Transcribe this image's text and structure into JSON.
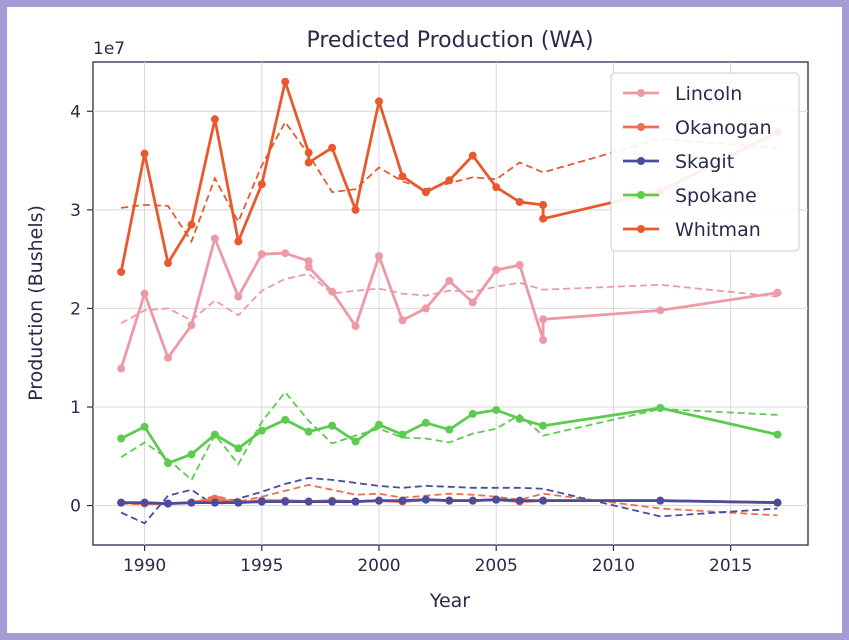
{
  "chart_data": {
    "type": "line",
    "title": "Predicted Production (WA)",
    "xlabel": "Year",
    "ylabel": "Production (Bushels)",
    "y_offset_label": "1e7",
    "xlim": [
      1987.8,
      2018.3
    ],
    "ylim": [
      -4000000,
      45000000
    ],
    "xticks": [
      1990,
      1995,
      2000,
      2005,
      2010,
      2015
    ],
    "yticks": [
      0,
      10000000,
      20000000,
      30000000,
      40000000
    ],
    "ytick_labels": [
      "0",
      "1",
      "2",
      "3",
      "4"
    ],
    "grid": true,
    "legend_position": "top-right",
    "series": [
      {
        "name": "Lincoln",
        "color": "#ee9aa6",
        "actual_x": [
          1989,
          1990,
          1991,
          1992,
          1993,
          1994,
          1995,
          1996,
          1997,
          1997,
          1998,
          1999,
          2000,
          2001,
          2002,
          2003,
          2004,
          2005,
          2006,
          2007,
          2007,
          2012,
          2017
        ],
        "actual_y": [
          13900000,
          21500000,
          15000000,
          18300000,
          27100000,
          21200000,
          25500000,
          25600000,
          24800000,
          24200000,
          21700000,
          18200000,
          25300000,
          18800000,
          20000000,
          22800000,
          20600000,
          23900000,
          24400000,
          16800000,
          18900000,
          19800000,
          21600000
        ],
        "pred_x": [
          1989,
          1990,
          1991,
          1992,
          1993,
          1994,
          1995,
          1996,
          1997,
          1998,
          1999,
          2000,
          2001,
          2002,
          2003,
          2004,
          2005,
          2006,
          2007,
          2012,
          2017
        ],
        "pred_y": [
          18500000,
          19800000,
          20000000,
          18800000,
          20800000,
          19300000,
          21800000,
          23000000,
          23500000,
          21500000,
          21800000,
          22000000,
          21500000,
          21300000,
          21800000,
          21700000,
          22200000,
          22600000,
          21900000,
          22400000,
          21200000
        ]
      },
      {
        "name": "Okanogan",
        "color": "#ec7050",
        "actual_x": [
          1989,
          1990,
          1991,
          1992,
          1993,
          1994,
          1995,
          1996,
          1997,
          1998,
          1999,
          2000,
          2001,
          2002,
          2003,
          2004,
          2005,
          2006,
          2007,
          2012,
          2017
        ],
        "actual_y": [
          300000,
          200000,
          200000,
          300000,
          700000,
          300000,
          500000,
          500000,
          400000,
          500000,
          400000,
          500000,
          400000,
          600000,
          500000,
          500000,
          600000,
          400000,
          500000,
          500000,
          300000
        ],
        "pred_x": [
          1989,
          1990,
          1991,
          1992,
          1993,
          1994,
          1995,
          1996,
          1997,
          1998,
          1999,
          2000,
          2001,
          2002,
          2003,
          2004,
          2005,
          2006,
          2007,
          2012,
          2017
        ],
        "pred_y": [
          200000,
          100000,
          300000,
          200000,
          1000000,
          400000,
          900000,
          1500000,
          2100000,
          1600000,
          1100000,
          1200000,
          800000,
          1000000,
          1200000,
          1100000,
          900000,
          600000,
          1200000,
          -300000,
          -1000000
        ]
      },
      {
        "name": "Skagit",
        "color": "#4b4d9c",
        "actual_x": [
          1989,
          1990,
          1991,
          1992,
          1993,
          1994,
          1995,
          1996,
          1997,
          1998,
          1999,
          2000,
          2001,
          2002,
          2003,
          2004,
          2005,
          2006,
          2007,
          2012,
          2017
        ],
        "actual_y": [
          300000,
          300000,
          200000,
          300000,
          300000,
          300000,
          400000,
          400000,
          400000,
          400000,
          400000,
          500000,
          500000,
          600000,
          500000,
          500000,
          600000,
          500000,
          500000,
          500000,
          300000
        ],
        "pred_x": [
          1989,
          1990,
          1991,
          1992,
          1993,
          1994,
          1995,
          1996,
          1997,
          1998,
          1999,
          2000,
          2001,
          2002,
          2003,
          2004,
          2005,
          2006,
          2007,
          2012,
          2017
        ],
        "pred_y": [
          -700000,
          -1800000,
          1000000,
          1600000,
          0,
          700000,
          1400000,
          2200000,
          2800000,
          2600000,
          2300000,
          2000000,
          1800000,
          2000000,
          1900000,
          1800000,
          1800000,
          1800000,
          1700000,
          -1100000,
          -300000
        ]
      },
      {
        "name": "Spokane",
        "color": "#5ccb4f",
        "actual_x": [
          1989,
          1990,
          1991,
          1992,
          1993,
          1994,
          1995,
          1996,
          1997,
          1998,
          1999,
          2000,
          2001,
          2002,
          2003,
          2004,
          2005,
          2006,
          2007,
          2012,
          2017
        ],
        "actual_y": [
          6800000,
          8000000,
          4300000,
          5200000,
          7200000,
          5800000,
          7600000,
          8700000,
          7500000,
          8100000,
          6500000,
          8200000,
          7200000,
          8400000,
          7700000,
          9300000,
          9700000,
          8800000,
          8100000,
          9900000,
          7200000
        ],
        "pred_x": [
          1989,
          1990,
          1991,
          1992,
          1993,
          1994,
          1995,
          1996,
          1997,
          1998,
          1999,
          2000,
          2001,
          2002,
          2003,
          2004,
          2005,
          2006,
          2007,
          2012,
          2017
        ],
        "pred_y": [
          4900000,
          6400000,
          4700000,
          2600000,
          7200000,
          4200000,
          8500000,
          11500000,
          8600000,
          6300000,
          7100000,
          7800000,
          6900000,
          6800000,
          6400000,
          7300000,
          7800000,
          9200000,
          7100000,
          9800000,
          9200000
        ]
      },
      {
        "name": "Whitman",
        "color": "#e85a2e",
        "actual_x": [
          1989,
          1990,
          1991,
          1992,
          1993,
          1994,
          1995,
          1996,
          1997,
          1997,
          1998,
          1999,
          2000,
          2001,
          2002,
          2003,
          2004,
          2005,
          2006,
          2007,
          2007,
          2012,
          2017
        ],
        "actual_y": [
          23700000,
          35700000,
          24600000,
          28500000,
          39200000,
          26800000,
          32600000,
          43000000,
          35800000,
          34800000,
          36300000,
          30000000,
          41000000,
          33400000,
          31800000,
          33000000,
          35500000,
          32300000,
          30800000,
          30500000,
          29100000,
          31900000,
          37900000
        ],
        "pred_x": [
          1989,
          1990,
          1991,
          1992,
          1993,
          1994,
          1995,
          1996,
          1997,
          1998,
          1999,
          2000,
          2001,
          2002,
          2003,
          2004,
          2005,
          2006,
          2007,
          2012,
          2017
        ],
        "pred_y": [
          30200000,
          30500000,
          30400000,
          26800000,
          33200000,
          28800000,
          34500000,
          38900000,
          35600000,
          31800000,
          32100000,
          34300000,
          32900000,
          32100000,
          32700000,
          33300000,
          33100000,
          34800000,
          33800000,
          37200000,
          36300000
        ]
      }
    ]
  }
}
